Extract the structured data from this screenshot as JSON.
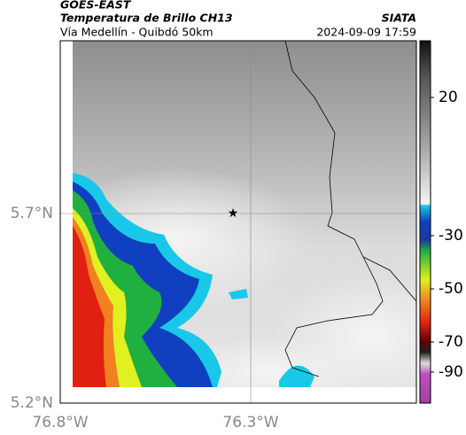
{
  "header": {
    "title": "GOES-EAST",
    "subtitle": "Temperatura de Brillo CH13",
    "route": "Vía Medellín - Quibdó 50km",
    "source": "SIATA",
    "timestamp": "2024-09-09 17:59"
  },
  "map": {
    "lat_ticks": [
      "5.7°N",
      "5.2°N"
    ],
    "lon_ticks": [
      "76.8°W",
      "76.3°W"
    ]
  },
  "colorbar": {
    "ticks": [
      20,
      -30,
      -50,
      -70,
      -90
    ]
  }
}
